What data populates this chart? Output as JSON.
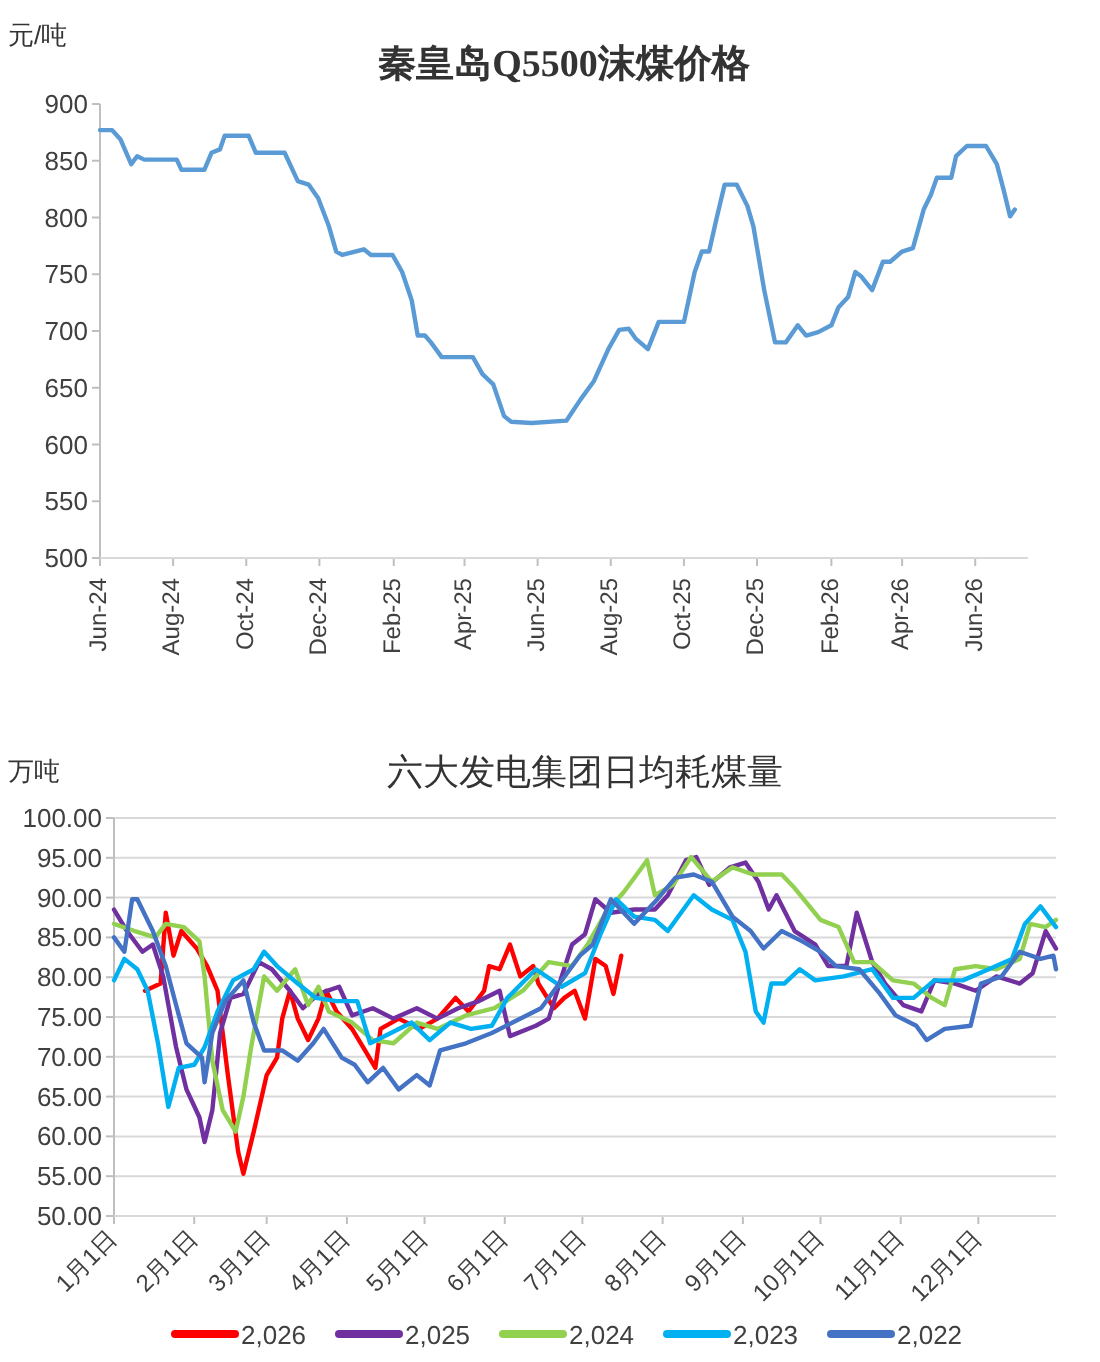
{
  "chart_data": [
    {
      "type": "line",
      "title": "秦皇岛Q5500沫煤价格",
      "ylabel": "元/吨",
      "xlim": [
        "2024-06-01",
        "2026-07-15"
      ],
      "ylim": [
        500,
        900
      ],
      "yticks": [
        500,
        550,
        600,
        650,
        700,
        750,
        800,
        850,
        900
      ],
      "xticks": [
        {
          "value": "2024-06-01",
          "label": "Jun-24"
        },
        {
          "value": "2024-08-01",
          "label": "Aug-24"
        },
        {
          "value": "2024-10-01",
          "label": "Oct-24"
        },
        {
          "value": "2024-12-01",
          "label": "Dec-24"
        },
        {
          "value": "2025-02-01",
          "label": "Feb-25"
        },
        {
          "value": "2025-04-01",
          "label": "Apr-25"
        },
        {
          "value": "2025-06-01",
          "label": "Jun-25"
        },
        {
          "value": "2025-08-01",
          "label": "Aug-25"
        },
        {
          "value": "2025-10-01",
          "label": "Oct-25"
        },
        {
          "value": "2025-12-01",
          "label": "Dec-25"
        },
        {
          "value": "2026-02-01",
          "label": "Feb-26"
        },
        {
          "value": "2026-04-01",
          "label": "Apr-26"
        },
        {
          "value": "2026-06-01",
          "label": "Jun-26"
        }
      ],
      "series": [
        {
          "color": "#5b9bd5",
          "x": [
            "2024-06-01",
            "2024-06-11",
            "2024-06-18",
            "2024-06-27",
            "2024-07-02",
            "2024-07-08",
            "2024-08-04",
            "2024-08-08",
            "2024-08-27",
            "2024-09-02",
            "2024-09-09",
            "2024-09-13",
            "2024-10-03",
            "2024-10-09",
            "2024-11-02",
            "2024-11-13",
            "2024-11-22",
            "2024-11-30",
            "2024-12-09",
            "2024-12-15",
            "2024-12-20",
            "2025-01-07",
            "2025-01-13",
            "2025-01-31",
            "2025-02-08",
            "2025-02-16",
            "2025-02-21",
            "2025-02-27",
            "2025-03-04",
            "2025-03-13",
            "2025-04-08",
            "2025-04-16",
            "2025-04-25",
            "2025-05-04",
            "2025-05-10",
            "2025-05-27",
            "2025-06-25",
            "2025-07-07",
            "2025-07-18",
            "2025-07-30",
            "2025-08-08",
            "2025-08-16",
            "2025-08-22",
            "2025-09-01",
            "2025-09-10",
            "2025-09-16",
            "2025-10-01",
            "2025-10-10",
            "2025-10-16",
            "2025-10-22",
            "2025-10-28",
            "2025-11-04",
            "2025-11-14",
            "2025-11-23",
            "2025-11-28",
            "2025-12-07",
            "2025-12-16",
            "2025-12-25",
            "2026-01-04",
            "2026-01-11",
            "2026-01-21",
            "2026-02-01",
            "2026-02-07",
            "2026-02-15",
            "2026-02-21",
            "2026-02-26",
            "2026-03-07",
            "2026-03-16",
            "2026-03-22",
            "2026-04-01",
            "2026-04-10",
            "2026-04-19",
            "2026-04-25",
            "2026-04-30",
            "2026-05-12",
            "2026-05-16",
            "2026-05-25",
            "2026-06-10",
            "2026-06-19",
            "2026-06-25",
            "2026-06-30",
            "2026-07-04"
          ],
          "values": [
            877,
            877,
            869,
            847,
            854,
            851,
            851,
            842,
            842,
            857,
            860,
            872,
            872,
            857,
            857,
            832,
            829,
            817,
            792,
            770,
            767,
            772,
            767,
            767,
            752,
            727,
            696,
            696,
            690,
            677,
            677,
            662,
            653,
            625,
            620,
            619,
            621,
            640,
            656,
            684,
            701,
            702,
            693,
            684,
            708,
            708,
            708,
            752,
            770,
            770,
            798,
            829,
            829,
            810,
            792,
            736,
            690,
            690,
            705,
            696,
            699,
            705,
            721,
            730,
            752,
            748,
            736,
            761,
            761,
            770,
            773,
            807,
            820,
            835,
            835,
            854,
            863,
            863,
            847,
            823,
            801,
            807
          ]
        }
      ]
    },
    {
      "type": "line",
      "title": "六大发电集团日均耗煤量",
      "ylabel": "万吨",
      "grid": "y",
      "legend": "bottom",
      "xlim": [
        "--01-01",
        "--12-31"
      ],
      "ylim": [
        50,
        100
      ],
      "yticks": [
        {
          "value": 50,
          "label": "50.00"
        },
        {
          "value": 55,
          "label": "55.00"
        },
        {
          "value": 60,
          "label": "60.00"
        },
        {
          "value": 65,
          "label": "65.00"
        },
        {
          "value": 70,
          "label": "70.00"
        },
        {
          "value": 75,
          "label": "75.00"
        },
        {
          "value": 80,
          "label": "80.00"
        },
        {
          "value": 85,
          "label": "85.00"
        },
        {
          "value": 90,
          "label": "90.00"
        },
        {
          "value": 95,
          "label": "95.00"
        },
        {
          "value": 100,
          "label": "100.00"
        }
      ],
      "xticks": [
        {
          "value": "--01-01",
          "label": "1月1日"
        },
        {
          "value": "--02-01",
          "label": "2月1日"
        },
        {
          "value": "--03-01",
          "label": "3月1日"
        },
        {
          "value": "--04-01",
          "label": "4月1日"
        },
        {
          "value": "--05-01",
          "label": "5月1日"
        },
        {
          "value": "--06-01",
          "label": "6月1日"
        },
        {
          "value": "--07-01",
          "label": "7月1日"
        },
        {
          "value": "--08-01",
          "label": "8月1日"
        },
        {
          "value": "--09-01",
          "label": "9月1日"
        },
        {
          "value": "--10-01",
          "label": "10月1日"
        },
        {
          "value": "--11-01",
          "label": "11月1日"
        },
        {
          "value": "--12-01",
          "label": "12月1日"
        }
      ],
      "series": [
        {
          "name": "2,026",
          "color": "#ff0000",
          "x": [
            "--01-13",
            "--01-19",
            "--01-21",
            "--01-24",
            "--01-27",
            "--02-02",
            "--02-06",
            "--02-10",
            "--02-14",
            "--02-18",
            "--02-20",
            "--02-24",
            "--03-01",
            "--03-05",
            "--03-07",
            "--03-10",
            "--03-13",
            "--03-17",
            "--03-21",
            "--03-24",
            "--03-28",
            "--04-03",
            "--04-08",
            "--04-12",
            "--04-14",
            "--04-21",
            "--04-29",
            "--05-06",
            "--05-13",
            "--05-18",
            "--05-24",
            "--05-26",
            "--05-30",
            "--06-03",
            "--06-07",
            "--06-12",
            "--06-14",
            "--06-20",
            "--06-24",
            "--06-28",
            "--07-02",
            "--07-06",
            "--07-10",
            "--07-13",
            "--07-16"
          ],
          "values": [
            78.3,
            79.2,
            88.1,
            82.7,
            85.8,
            83.6,
            81.4,
            78.3,
            67.7,
            58.0,
            55.3,
            60.6,
            67.7,
            69.9,
            74.8,
            78.3,
            74.8,
            72.1,
            74.8,
            78.3,
            75.7,
            73.5,
            70.8,
            68.6,
            73.5,
            74.8,
            73.5,
            74.8,
            77.4,
            75.7,
            78.3,
            81.4,
            81.0,
            84.1,
            80.1,
            81.4,
            79.2,
            76.1,
            77.4,
            78.3,
            74.8,
            82.3,
            81.4,
            77.9,
            82.7
          ]
        },
        {
          "name": "2,025",
          "color": "#7030a0",
          "x": [
            "--01-01",
            "--01-06",
            "--01-12",
            "--01-16",
            "--01-20",
            "--01-25",
            "--01-29",
            "--02-03",
            "--02-05",
            "--02-08",
            "--02-11",
            "--02-15",
            "--02-20",
            "--02-26",
            "--03-03",
            "--03-10",
            "--03-15",
            "--03-21",
            "--03-29",
            "--04-03",
            "--04-11",
            "--04-19",
            "--04-28",
            "--05-06",
            "--05-14",
            "--05-22",
            "--05-30",
            "--06-03",
            "--06-13",
            "--06-18",
            "--06-23",
            "--06-27",
            "--07-02",
            "--07-06",
            "--07-12",
            "--07-21",
            "--07-29",
            "--08-03",
            "--08-10",
            "--08-14",
            "--08-19",
            "--08-27",
            "--09-02",
            "--09-07",
            "--09-11",
            "--09-14",
            "--09-21",
            "--09-29",
            "--10-04",
            "--10-11",
            "--10-15",
            "--10-21",
            "--10-26",
            "--11-02",
            "--11-09",
            "--11-14",
            "--11-22",
            "--11-30",
            "--12-08",
            "--12-17",
            "--12-22",
            "--12-27",
            "--12-31"
          ],
          "values": [
            88.5,
            85.8,
            83.2,
            84.1,
            80.1,
            71.2,
            65.9,
            62.4,
            59.3,
            63.3,
            73.0,
            77.4,
            77.9,
            81.9,
            81.0,
            78.3,
            76.1,
            77.9,
            78.8,
            75.2,
            76.1,
            74.8,
            76.1,
            74.8,
            76.1,
            77.0,
            78.3,
            72.6,
            73.9,
            74.8,
            80.1,
            84.1,
            85.4,
            89.8,
            88.1,
            88.5,
            88.5,
            90.3,
            94.7,
            95.1,
            91.6,
            93.8,
            94.4,
            92.0,
            88.5,
            90.3,
            85.8,
            84.1,
            81.4,
            81.4,
            88.1,
            81.9,
            79.2,
            76.5,
            75.7,
            79.6,
            79.2,
            78.3,
            80.1,
            79.2,
            80.5,
            85.8,
            83.6
          ]
        },
        {
          "name": "2,024",
          "color": "#92d050",
          "x": [
            "--01-01",
            "--01-09",
            "--01-17",
            "--01-21",
            "--01-28",
            "--02-03",
            "--02-05",
            "--02-08",
            "--02-12",
            "--02-17",
            "--02-20",
            "--02-23",
            "--02-28",
            "--03-05",
            "--03-12",
            "--03-17",
            "--03-21",
            "--03-25",
            "--04-03",
            "--04-11",
            "--04-19",
            "--04-28",
            "--05-06",
            "--05-17",
            "--05-28",
            "--06-08",
            "--06-18",
            "--06-27",
            "--07-03",
            "--07-10",
            "--07-17",
            "--07-22",
            "--07-26",
            "--07-29",
            "--08-05",
            "--08-12",
            "--08-20",
            "--08-28",
            "--09-05",
            "--09-16",
            "--09-21",
            "--10-01",
            "--10-08",
            "--10-14",
            "--10-21",
            "--10-29",
            "--11-06",
            "--11-13",
            "--11-18",
            "--11-22",
            "--11-30",
            "--12-08",
            "--12-17",
            "--12-21",
            "--12-27",
            "--12-31"
          ],
          "values": [
            86.7,
            85.8,
            85.0,
            86.7,
            86.3,
            84.5,
            80.1,
            69.5,
            63.3,
            60.6,
            65.0,
            71.2,
            80.1,
            78.3,
            81.0,
            76.5,
            78.8,
            75.7,
            74.3,
            72.1,
            71.7,
            74.3,
            73.5,
            75.2,
            76.1,
            78.3,
            81.9,
            81.4,
            84.1,
            88.1,
            90.7,
            92.9,
            94.7,
            90.3,
            91.6,
            95.1,
            92.0,
            93.8,
            92.9,
            92.9,
            91.2,
            87.2,
            86.3,
            81.9,
            81.9,
            79.6,
            79.2,
            77.4,
            76.5,
            81.0,
            81.4,
            81.0,
            82.3,
            86.7,
            86.3,
            87.2
          ]
        },
        {
          "name": "2,023",
          "color": "#00b0f0",
          "x": [
            "--01-01",
            "--01-05",
            "--01-10",
            "--01-14",
            "--01-18",
            "--01-22",
            "--01-26",
            "--02-01",
            "--02-05",
            "--02-10",
            "--02-16",
            "--02-24",
            "--02-28",
            "--03-05",
            "--03-13",
            "--03-20",
            "--03-28",
            "--04-05",
            "--04-10",
            "--04-18",
            "--04-26",
            "--05-03",
            "--05-11",
            "--05-19",
            "--05-27",
            "--06-02",
            "--06-13",
            "--06-23",
            "--07-02",
            "--07-08",
            "--07-14",
            "--07-21",
            "--07-29",
            "--08-03",
            "--08-13",
            "--08-20",
            "--08-28",
            "--09-02",
            "--09-06",
            "--09-09",
            "--09-12",
            "--09-17",
            "--09-23",
            "--09-29",
            "--10-10",
            "--10-21",
            "--10-29",
            "--11-06",
            "--11-14",
            "--11-25",
            "--12-05",
            "--12-14",
            "--12-19",
            "--12-25",
            "--12-31"
          ],
          "values": [
            79.6,
            82.3,
            81.0,
            78.3,
            71.7,
            63.7,
            68.6,
            69.0,
            71.2,
            75.7,
            79.6,
            81.0,
            83.2,
            81.4,
            79.2,
            77.4,
            77.0,
            77.0,
            71.7,
            73.0,
            74.3,
            72.1,
            74.3,
            73.5,
            73.9,
            77.4,
            81.0,
            78.8,
            80.5,
            85.4,
            89.8,
            87.6,
            87.2,
            85.8,
            90.3,
            88.5,
            87.2,
            83.2,
            75.7,
            74.3,
            79.2,
            79.2,
            81.0,
            79.6,
            80.1,
            81.0,
            77.4,
            77.4,
            79.6,
            79.6,
            81.0,
            82.3,
            86.7,
            88.9,
            86.3
          ]
        },
        {
          "name": "2,022",
          "color": "#4472c4",
          "x": [
            "--01-01",
            "--01-05",
            "--01-08",
            "--01-10",
            "--01-16",
            "--01-21",
            "--01-25",
            "--01-29",
            "--02-04",
            "--02-05",
            "--02-08",
            "--02-13",
            "--02-20",
            "--02-24",
            "--02-28",
            "--03-07",
            "--03-13",
            "--03-19",
            "--03-23",
            "--03-30",
            "--04-04",
            "--04-09",
            "--04-15",
            "--04-21",
            "--04-28",
            "--05-03",
            "--05-07",
            "--05-17",
            "--05-27",
            "--06-04",
            "--06-15",
            "--06-23",
            "--06-30",
            "--07-05",
            "--07-12",
            "--07-21",
            "--07-30",
            "--08-06",
            "--08-13",
            "--08-20",
            "--08-28",
            "--09-04",
            "--09-09",
            "--09-16",
            "--09-24",
            "--10-01",
            "--10-07",
            "--10-16",
            "--10-24",
            "--10-30",
            "--11-07",
            "--11-11",
            "--11-18",
            "--11-28",
            "--12-02",
            "--12-10",
            "--12-17",
            "--12-25",
            "--12-30",
            "--12-31"
          ],
          "values": [
            85.0,
            83.2,
            89.8,
            89.8,
            85.8,
            81.4,
            76.5,
            71.7,
            69.9,
            66.8,
            73.0,
            77.0,
            79.6,
            74.3,
            70.8,
            70.8,
            69.5,
            71.7,
            73.5,
            69.9,
            69.0,
            66.8,
            68.6,
            65.9,
            67.7,
            66.4,
            70.8,
            71.7,
            73.0,
            74.3,
            76.1,
            79.6,
            82.7,
            84.1,
            89.8,
            86.7,
            89.8,
            92.5,
            92.9,
            92.0,
            87.6,
            85.8,
            83.6,
            85.8,
            84.5,
            83.2,
            81.4,
            81.0,
            77.9,
            75.2,
            73.9,
            72.1,
            73.5,
            73.9,
            79.2,
            80.1,
            83.2,
            82.3,
            82.7,
            81.0
          ]
        }
      ]
    }
  ]
}
